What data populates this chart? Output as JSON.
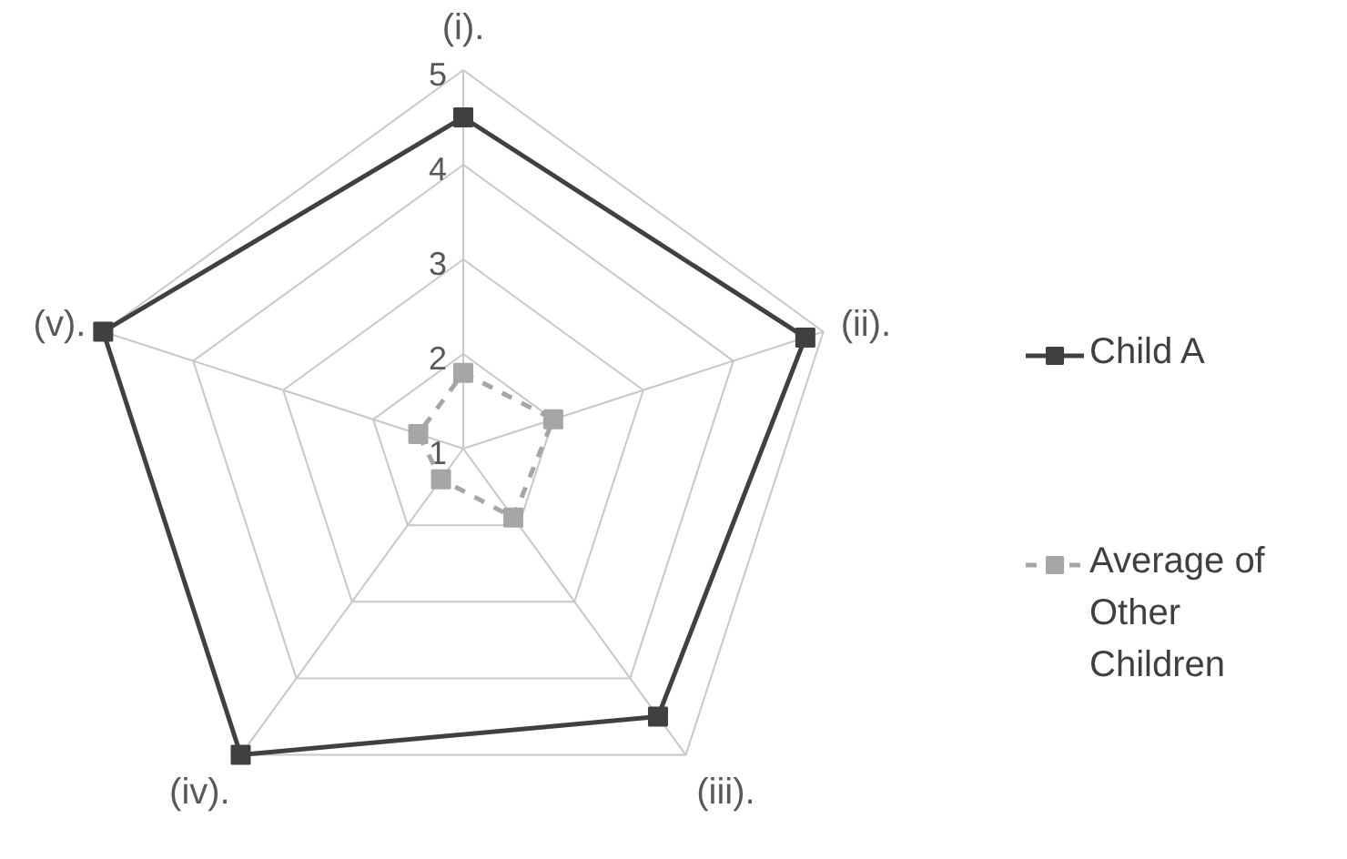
{
  "chart_data": {
    "type": "radar",
    "categories": [
      "(i).",
      "(ii).",
      "(iii).",
      "(iv).",
      "(v)."
    ],
    "ylim": [
      1,
      5
    ],
    "yticks": [
      1,
      2,
      3,
      4,
      5
    ],
    "grid": true,
    "legend": "right",
    "marker": "square",
    "series": [
      {
        "name": "Child A",
        "color": "#404040",
        "line_style": "solid",
        "values": [
          4.5,
          4.8,
          4.5,
          5,
          5
        ]
      },
      {
        "name": "Average of Other Children",
        "color": "#a6a6a6",
        "line_style": "dashed",
        "values": [
          1.8,
          2.0,
          1.9,
          1.4,
          1.5
        ]
      }
    ]
  }
}
